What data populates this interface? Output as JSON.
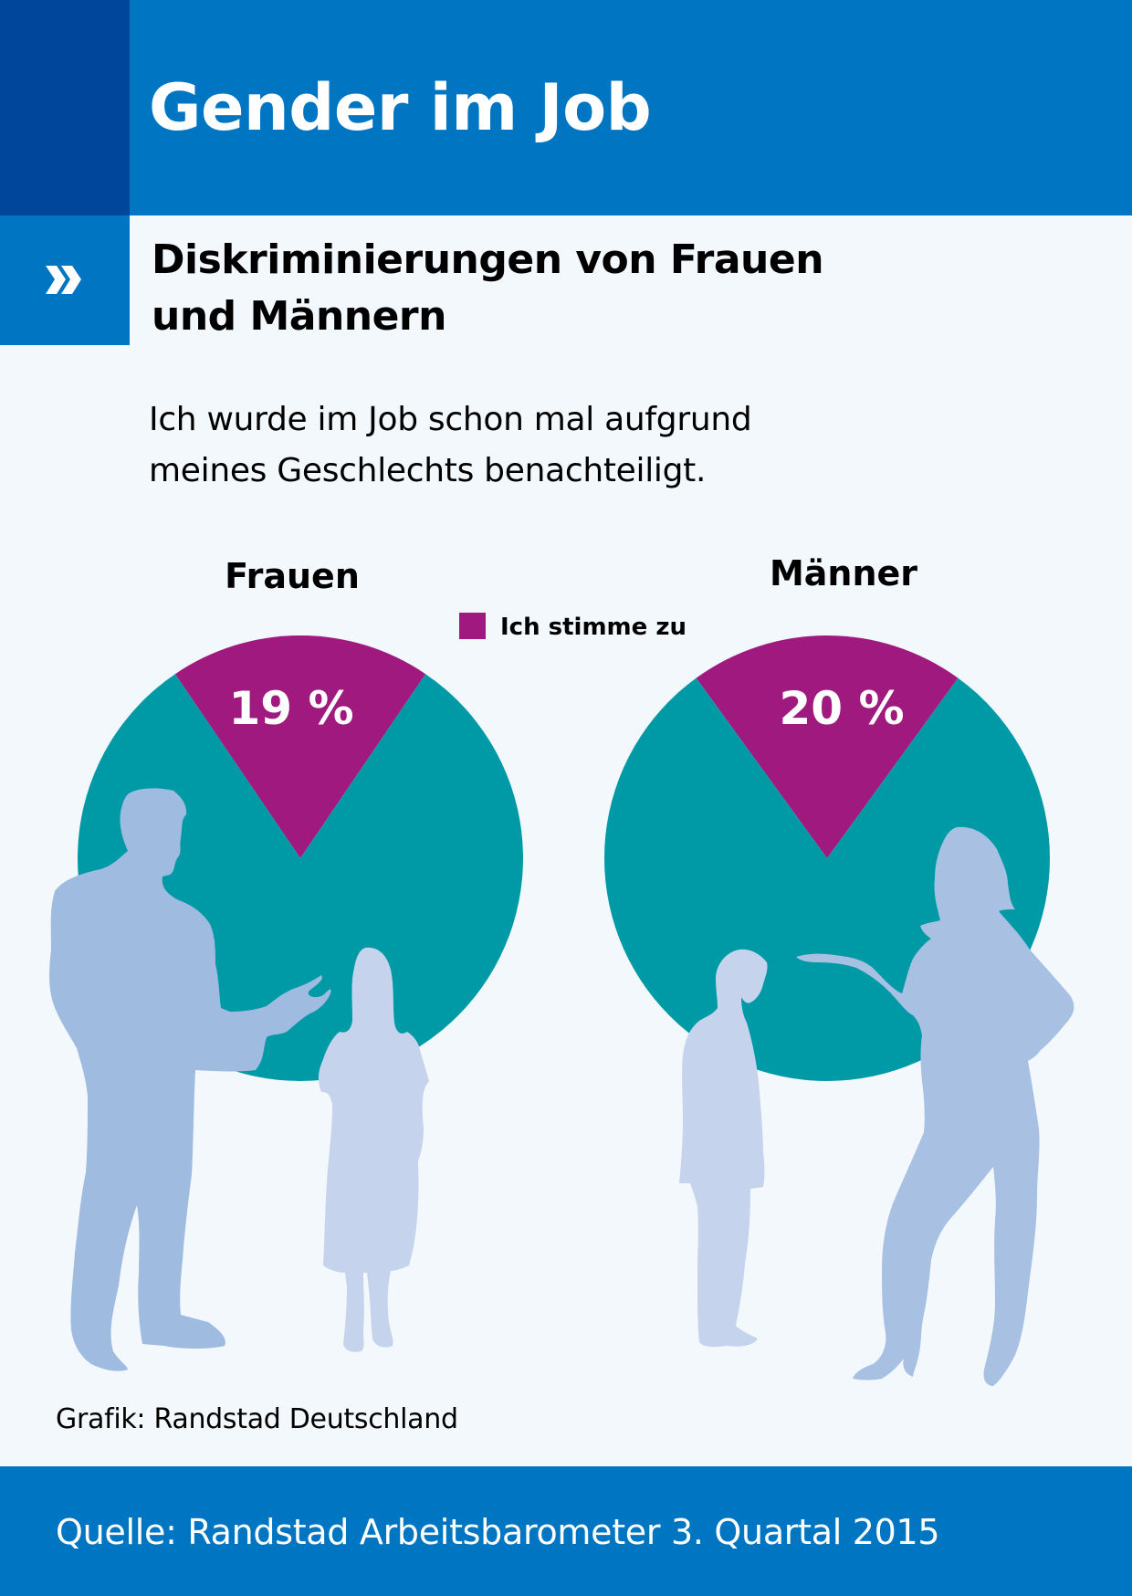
{
  "header": {
    "title": "Gender im Job"
  },
  "subheader": {
    "icon": "double-chevron-right-icon",
    "title_line1": "Diskriminierungen von Frauen",
    "title_line2": "und Männern"
  },
  "question": {
    "line1": "Ich wurde im Job schon mal aufgrund",
    "line2": "meines Geschlechts benachteiligt."
  },
  "colors": {
    "header_blue": "#0075c2",
    "header_dark_blue": "#00469a",
    "background": "#f3f8fd",
    "agree": "#a0197e",
    "rest": "#009aa6",
    "silhouette_dark": "#a0bbe0",
    "silhouette_light": "#c5d4ec"
  },
  "chart_data": {
    "type": "pie",
    "title": "Ich wurde im Job schon mal aufgrund meines Geschlechts benachteiligt.",
    "legend": [
      {
        "label": "Ich stimme zu",
        "color": "#a0197e"
      }
    ],
    "legend_position": "top-center",
    "pies": [
      {
        "name": "Frauen",
        "slices": [
          {
            "label": "Ich stimme zu",
            "value": 19,
            "display": "19 %",
            "color": "#a0197e"
          },
          {
            "label": "",
            "value": 81,
            "color": "#009aa6"
          }
        ]
      },
      {
        "name": "Männer",
        "slices": [
          {
            "label": "Ich stimme zu",
            "value": 20,
            "display": "20 %",
            "color": "#a0197e"
          },
          {
            "label": "",
            "value": 80,
            "color": "#009aa6"
          }
        ]
      }
    ]
  },
  "credit": "Grafik: Randstad Deutschland",
  "footer": {
    "source": "Quelle: Randstad Arbeitsbarometer 3. Quartal 2015"
  }
}
